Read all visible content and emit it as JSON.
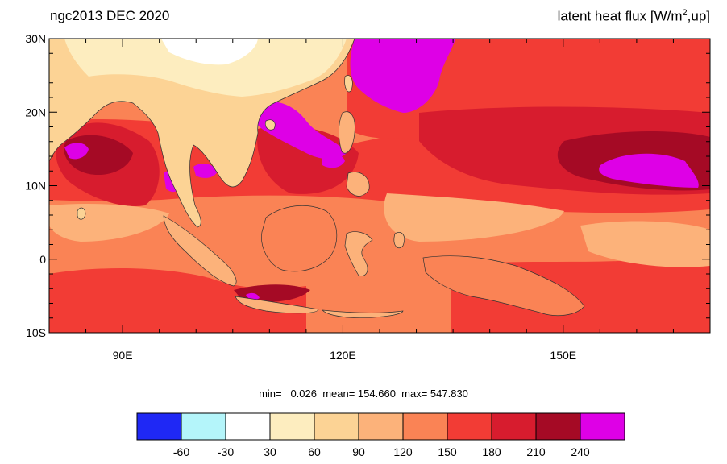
{
  "header": {
    "left_title": "ngc2013 DEC 2020",
    "right_title_main": "latent heat flux [W/m",
    "right_title_sup": "2",
    "right_title_tail": ",up]"
  },
  "map": {
    "lon_range": [
      80,
      170
    ],
    "lat_range": [
      -10,
      30
    ],
    "lon_ticks": [
      {
        "value": 90,
        "label": "90E"
      },
      {
        "value": 120,
        "label": "120E"
      },
      {
        "value": 150,
        "label": "150E"
      }
    ],
    "lat_ticks": [
      {
        "value": 30,
        "label": "30N"
      },
      {
        "value": 20,
        "label": "20N"
      },
      {
        "value": 10,
        "label": "10N"
      },
      {
        "value": 0,
        "label": "0"
      },
      {
        "value": -10,
        "label": "10S"
      }
    ]
  },
  "stats": {
    "text": "min=   0.026  mean= 154.660  max= 547.830"
  },
  "colorbar": {
    "colors": [
      "#1f28f5",
      "#b4f5fa",
      "#ffffff",
      "#fdedbf",
      "#fcd395",
      "#fcb27a",
      "#fa8355",
      "#f23c35",
      "#d71c2e",
      "#a50a25",
      "#de00e6"
    ],
    "labels": [
      "-60",
      "-30",
      "30",
      "60",
      "90",
      "120",
      "150",
      "180",
      "210",
      "240"
    ]
  },
  "palette": {
    "land_light": "#fdedbf",
    "land_mid": "#fcd395",
    "ocean_base": "#fa8355",
    "ocean_high": "#f23c35",
    "ocean_higher": "#d71c2e",
    "ocean_peak": "#a50a25",
    "ocean_extreme": "#de00e6",
    "ocean_low": "#fcb27a",
    "coast": "#333333"
  }
}
